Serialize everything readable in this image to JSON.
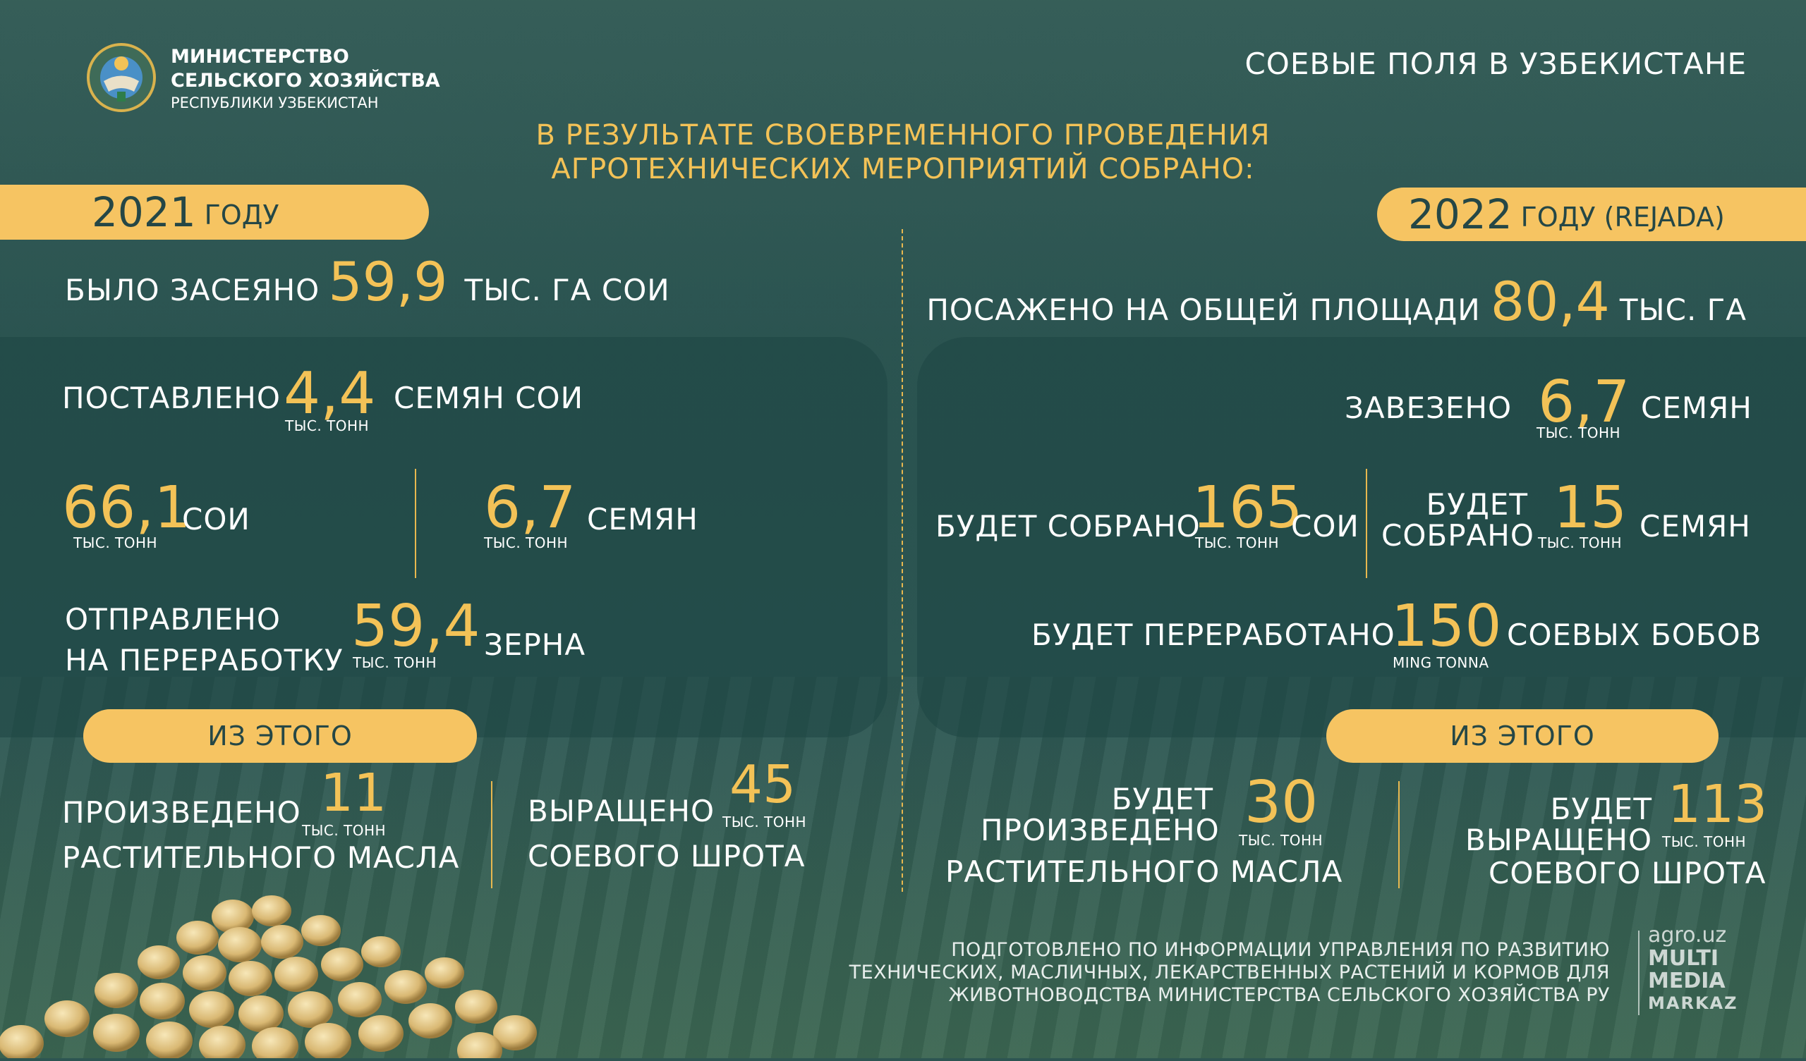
{
  "header": {
    "ministry_line1": "МИНИСТЕРСТВО",
    "ministry_line2": "СЕЛЬСКОГО ХОЗЯЙСТВА",
    "ministry_line3": "РЕСПУБЛИКИ УЗБЕКИСТАН",
    "title": "СОЕВЫЕ ПОЛЯ В УЗБЕКИСТАНЕ",
    "subtitle_line1": "В РЕЗУЛЬТАТЕ СВОЕВРЕМЕННОГО ПРОВЕДЕНИЯ",
    "subtitle_line2": "АГРОТЕХНИЧЕСКИХ МЕРОПРИЯТИЙ СОБРАНО:"
  },
  "left": {
    "year": "2021",
    "year_suffix": "ГОДУ",
    "sown_label": "БЫЛО ЗАСЕЯНО",
    "sown_value": "59,9",
    "sown_unit": "ТЫС. ГА СОИ",
    "supplied_label": "ПОСТАВЛЕНО",
    "supplied_value": "4,4",
    "supplied_unit": "ТЫС. ТОНН",
    "supplied_suffix": "СЕМЯН СОИ",
    "soy_value": "66,1",
    "soy_unit": "ТЫС. ТОНН",
    "soy_label": "СОИ",
    "seeds_value": "6,7",
    "seeds_unit": "ТЫС. ТОНН",
    "seeds_label": "СЕМЯН",
    "sent_line1": "ОТПРАВЛЕНО",
    "sent_line2": "НА ПЕРЕРАБОТКУ",
    "sent_value": "59,4",
    "sent_unit": "ТЫС. ТОНН",
    "sent_suffix": "ЗЕРНА",
    "of_this": "ИЗ ЭТОГО",
    "oil_label": "ПРОИЗВЕДЕНО",
    "oil_value": "11",
    "oil_unit": "ТЫС. ТОНН",
    "oil_suffix": "РАСТИТЕЛЬНОГО МАСЛА",
    "meal_label": "ВЫРАЩЕНО",
    "meal_value": "45",
    "meal_unit": "ТЫС. ТОНН",
    "meal_suffix": "СОЕВОГО ШРОТА"
  },
  "right": {
    "year": "2022",
    "year_suffix": "ГОДУ (REJADA)",
    "planted_label": "ПОСАЖЕНО НА ОБЩЕЙ ПЛОЩАДИ",
    "planted_value": "80,4",
    "planted_unit": "ТЫС. ГА",
    "imported_label": "ЗАВЕЗЕНО",
    "imported_value": "6,7",
    "imported_unit": "ТЫС. ТОНН",
    "imported_suffix": "СЕМЯН",
    "harvest_label": "БУДЕТ СОБРАНО",
    "harvest_value": "165",
    "harvest_unit": "ТЫС. ТОНН",
    "harvest_suffix": "СОИ",
    "harvest2_line1": "БУДЕТ",
    "harvest2_line2": "СОБРАНО",
    "harvest2_value": "15",
    "harvest2_unit": "ТЫС. ТОНН",
    "harvest2_suffix": "СЕМЯН",
    "process_label": "БУДЕТ ПЕРЕРАБОТАНО",
    "process_value": "150",
    "process_unit": "MING TONNA",
    "process_suffix": "СОЕВЫХ БОБОВ",
    "of_this": "ИЗ ЭТОГО",
    "oil_line1": "БУДЕТ",
    "oil_line2": "ПРОИЗВЕДЕНО",
    "oil_value": "30",
    "oil_unit": "ТЫС. ТОНН",
    "oil_suffix": "РАСТИТЕЛЬНОГО МАСЛА",
    "meal_line1": "БУДЕТ",
    "meal_line2": "ВЫРАЩЕНО",
    "meal_value": "113",
    "meal_unit": "ТЫС. ТОНН",
    "meal_suffix": "СОЕВОГО ШРОТА"
  },
  "footer": {
    "source_line1": "ПОДГОТОВЛЕНО ПО ИНФОРМАЦИИ  УПРАВЛЕНИЯ ПО РАЗВИТИЮ",
    "source_line2": "ТЕХНИЧЕСКИХ, МАСЛИЧНЫХ, ЛЕКАРСТВЕННЫХ РАСТЕНИЙ И КОРМОВ ДЛЯ",
    "source_line3": "ЖИВОТНОВОДСТВА МИНИСТЕРСТВА СЕЛЬСКОГО ХОЗЯЙСТВА РУ",
    "brand_line1": "agro.uz",
    "brand_line2": "MULTI",
    "brand_line3": "MEDIA",
    "brand_line4": "MARKAZ"
  },
  "colors": {
    "accent": "#f3c257",
    "pill": "#f6c462",
    "background": "#2b5451"
  }
}
